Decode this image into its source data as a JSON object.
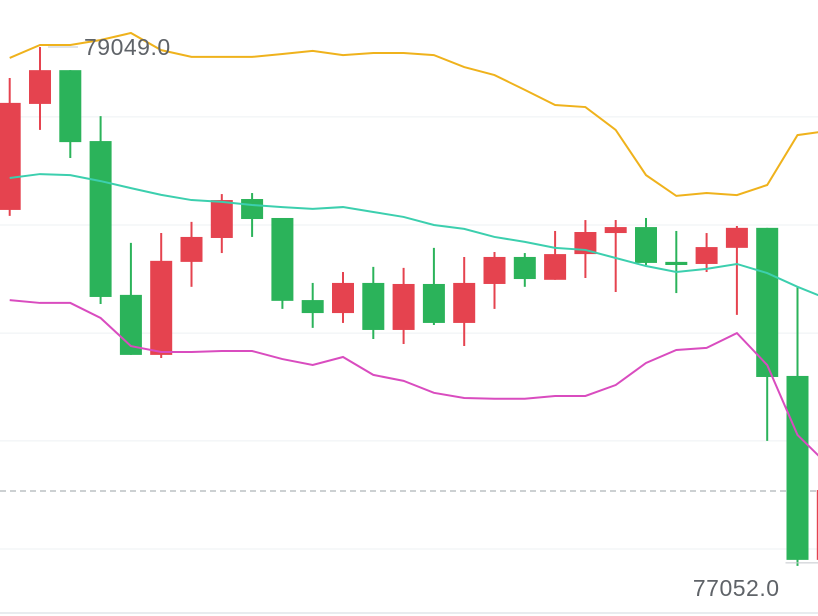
{
  "chart_data": {
    "type": "candlestick",
    "up_color": "#e5434f",
    "down_color": "#2bb35a",
    "open": [
      78422,
      78830,
      78960,
      78687,
      78095,
      77864,
      78222,
      78314,
      78464,
      78391,
      78075,
      78025,
      78141,
      77960,
      78137,
      77987,
      78137,
      78241,
      78153,
      78252,
      78333,
      78356,
      78222,
      78214,
      78276,
      78353,
      77783,
      77075
    ],
    "high": [
      78930,
      79049,
      78960,
      78783,
      78295,
      78333,
      78376,
      78483,
      78487,
      78391,
      78141,
      78183,
      78203,
      78199,
      78276,
      78241,
      78260,
      78256,
      78341,
      78383,
      78383,
      78391,
      78341,
      78333,
      78360,
      78353,
      78126,
      77344
    ],
    "low": [
      78399,
      78730,
      78622,
      78060,
      77864,
      77852,
      78126,
      78256,
      78318,
      78041,
      77968,
      77987,
      77925,
      77906,
      77979,
      77898,
      78041,
      78126,
      78153,
      78160,
      78106,
      78210,
      78102,
      78183,
      78018,
      77533,
      77052,
      77075
    ],
    "close": [
      78834,
      78960,
      78683,
      78087,
      77864,
      78226,
      78318,
      78460,
      78387,
      78072,
      78025,
      78141,
      77960,
      78137,
      77987,
      78141,
      78241,
      78156,
      78252,
      78337,
      78356,
      78218,
      78210,
      78279,
      78353,
      77779,
      77075,
      77344
    ],
    "bands": [
      {
        "color": "#efb21c",
        "values": [
          79007,
          79057,
          79057,
          79076,
          79103,
          79037,
          79011,
          79011,
          79011,
          79022,
          79034,
          79018,
          79026,
          79026,
          79018,
          78972,
          78941,
          78884,
          78826,
          78818,
          78730,
          78556,
          78476,
          78487,
          78479,
          78518,
          78710,
          78726
        ]
      },
      {
        "color": "#3ccfae",
        "values": [
          78545,
          78560,
          78556,
          78533,
          78506,
          78480,
          78460,
          78453,
          78441,
          78433,
          78426,
          78433,
          78414,
          78395,
          78364,
          78349,
          78318,
          78299,
          78276,
          78268,
          78237,
          78206,
          78183,
          78195,
          78214,
          78179,
          78126,
          78079
        ]
      },
      {
        "color": "#d94cbf",
        "values": [
          78075,
          78064,
          78064,
          78006,
          77898,
          77875,
          77875,
          77879,
          77879,
          77848,
          77825,
          77856,
          77787,
          77764,
          77718,
          77698,
          77695,
          77695,
          77706,
          77706,
          77748,
          77833,
          77883,
          77891,
          77948,
          77825,
          77556,
          77441
        ]
      }
    ],
    "ylim": [
      76859,
      79230
    ],
    "yticks": [
      78780,
      78364,
      77948,
      77533,
      77117
    ],
    "grid": true,
    "reference_line": 77340,
    "annotations": [
      {
        "index": 1,
        "value": 79049,
        "label": "79049.0",
        "side": "right"
      },
      {
        "index": 26,
        "value": 77052,
        "label": "77052.0",
        "side": "left"
      }
    ]
  }
}
